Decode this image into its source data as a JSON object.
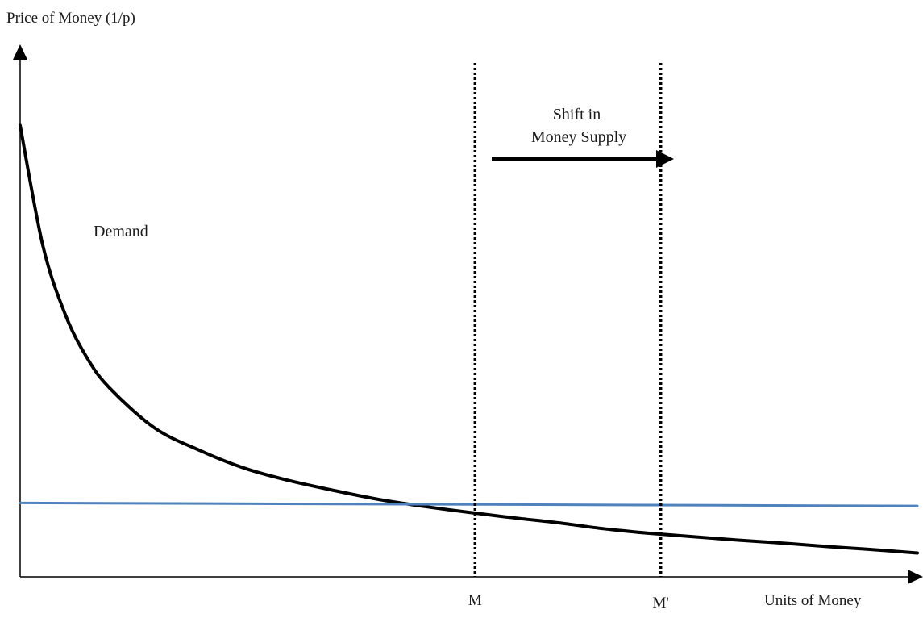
{
  "chart_data": {
    "type": "line",
    "title": "",
    "ylabel": "Price of Money (1/p)",
    "xlabel": "Units of Money",
    "xlim": [
      0,
      100
    ],
    "ylim": [
      0,
      100
    ],
    "grid": false,
    "legend": "none",
    "series": [
      {
        "name": "Demand",
        "color": "#000000",
        "x": [
          0,
          2.5,
          5,
          7.5,
          10,
          15,
          20,
          25,
          30,
          35,
          40,
          45,
          50,
          55,
          60,
          65,
          70,
          75,
          80,
          85,
          90,
          95,
          100
        ],
        "y": [
          91,
          67,
          53,
          44,
          38,
          30,
          25.5,
          21.9,
          19.4,
          17.4,
          15.6,
          14.2,
          13,
          11.9,
          10.9,
          9.7,
          8.8,
          8.1,
          7.4,
          6.8,
          6.1,
          5.5,
          4.8
        ]
      },
      {
        "name": "",
        "color": "#4f81bd",
        "x": [
          0,
          100
        ],
        "y": [
          14.9,
          14.3
        ]
      }
    ],
    "vertical_lines": [
      {
        "label": "M",
        "x": 50.7,
        "style": "dotted"
      },
      {
        "label": "M'",
        "x": 71.4,
        "style": "dotted"
      }
    ],
    "annotations": [
      {
        "text": "Demand"
      },
      {
        "lines": [
          "Shift in",
          "Money Supply"
        ],
        "arrow": "right"
      }
    ]
  },
  "colors": {
    "axis": "#000000",
    "demand": "#000000",
    "supply": "#4f81bd",
    "text": "#1a1a1a"
  }
}
